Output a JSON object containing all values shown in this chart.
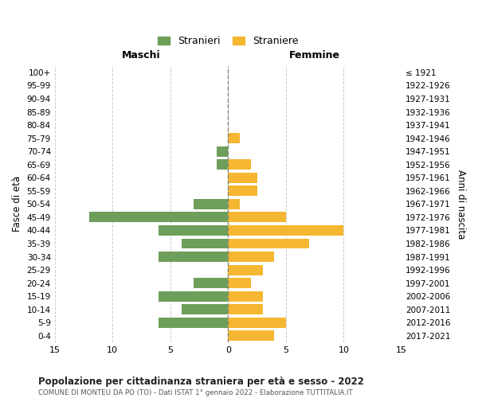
{
  "age_groups": [
    "100+",
    "95-99",
    "90-94",
    "85-89",
    "80-84",
    "75-79",
    "70-74",
    "65-69",
    "60-64",
    "55-59",
    "50-54",
    "45-49",
    "40-44",
    "35-39",
    "30-34",
    "25-29",
    "20-24",
    "15-19",
    "10-14",
    "5-9",
    "0-4"
  ],
  "birth_years": [
    "≤ 1921",
    "1922-1926",
    "1927-1931",
    "1932-1936",
    "1937-1941",
    "1942-1946",
    "1947-1951",
    "1952-1956",
    "1957-1961",
    "1962-1966",
    "1967-1971",
    "1972-1976",
    "1977-1981",
    "1982-1986",
    "1987-1991",
    "1992-1996",
    "1997-2001",
    "2002-2006",
    "2007-2011",
    "2012-2016",
    "2017-2021"
  ],
  "maschi": [
    0,
    0,
    0,
    0,
    0,
    0,
    1,
    1,
    0,
    0,
    3,
    12,
    6,
    4,
    6,
    0,
    3,
    6,
    4,
    6,
    0
  ],
  "femmine": [
    0,
    0,
    0,
    0,
    0,
    1,
    0,
    2,
    2.5,
    2.5,
    1,
    5,
    10,
    7,
    4,
    3,
    2,
    3,
    3,
    5,
    4
  ],
  "maschi_color": "#6d9e5a",
  "femmine_color": "#f5b731",
  "background_color": "#ffffff",
  "grid_color": "#cccccc",
  "center_line_color": "#888877",
  "xlim": 15,
  "title": "Popolazione per cittadinanza straniera per età e sesso - 2022",
  "subtitle": "COMUNE DI MONTEU DA PO (TO) - Dati ISTAT 1° gennaio 2022 - Elaborazione TUTTITALIA.IT",
  "xlabel_left": "Maschi",
  "xlabel_right": "Femmine",
  "ylabel_left": "Fasce di età",
  "ylabel_right": "Anni di nascita",
  "legend_maschi": "Stranieri",
  "legend_femmine": "Straniere"
}
